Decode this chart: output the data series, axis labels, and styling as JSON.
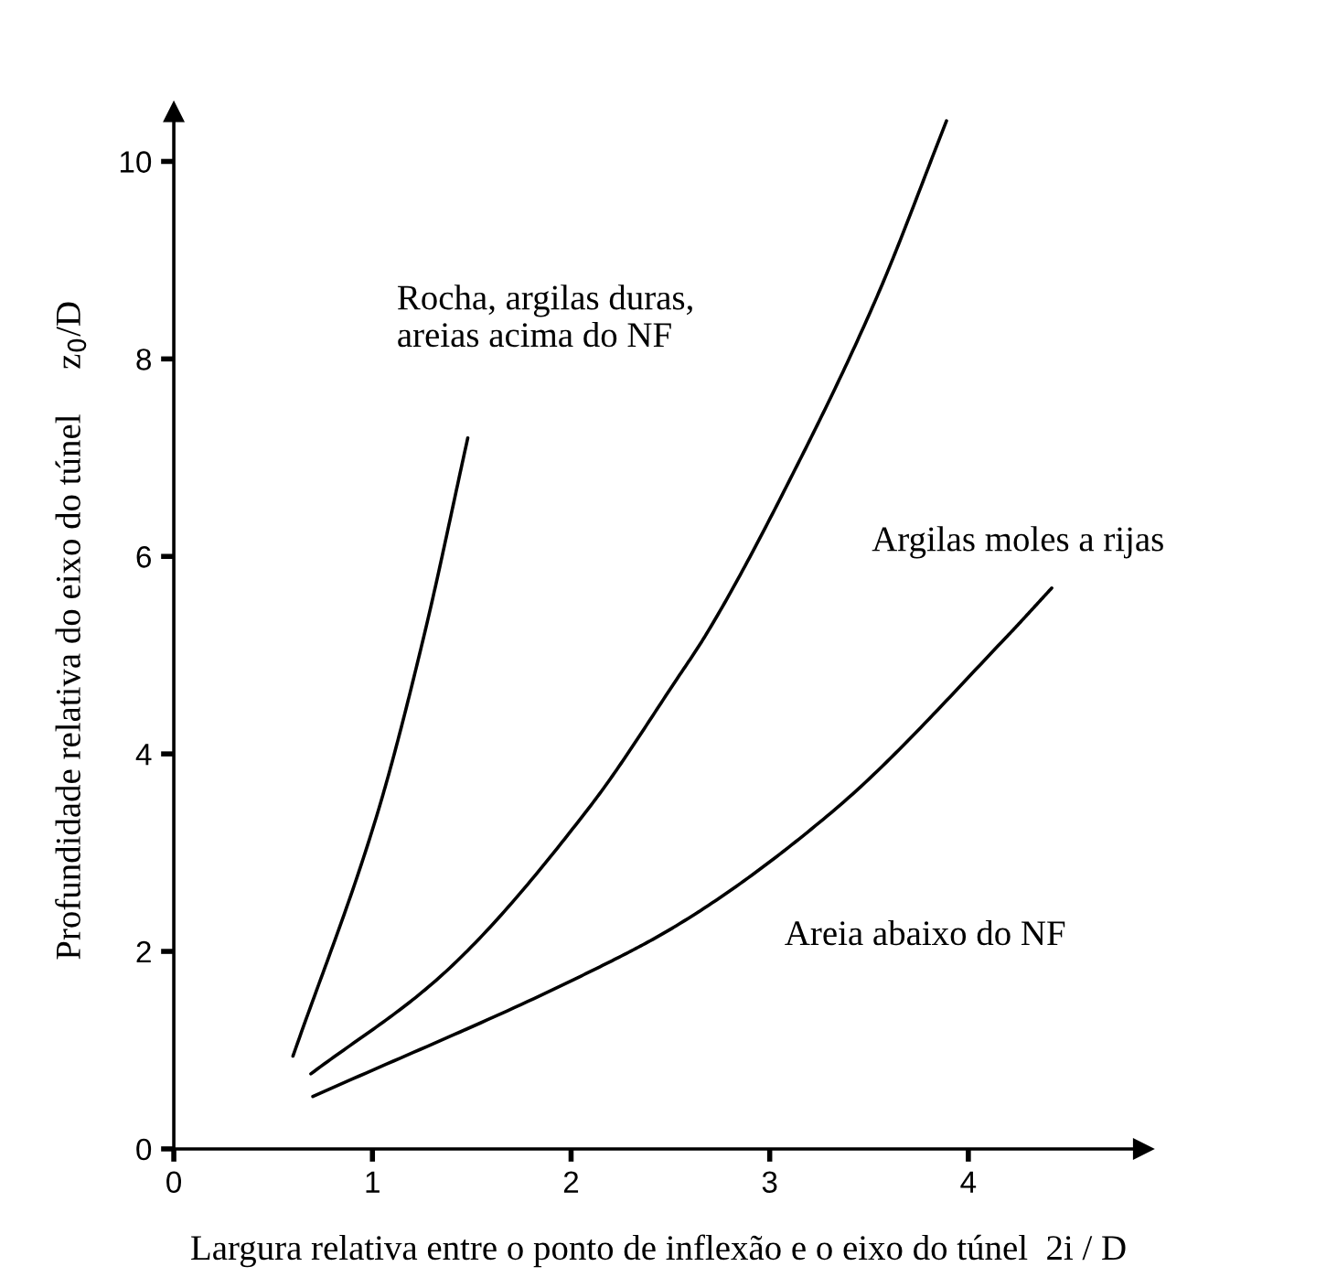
{
  "chart_data": {
    "type": "line",
    "xlabel": "Largura relativa entre o ponto de inflexão e o eixo do túnel  2i / D",
    "ylabel": "Profundidade relativa do eixo do túnel     z$_{0}$/D",
    "xlim": [
      0,
      4.88
    ],
    "ylim": [
      0,
      10.5
    ],
    "xticks": [
      0,
      1,
      2,
      3,
      4
    ],
    "yticks": [
      0,
      2,
      4,
      6,
      8,
      10
    ],
    "grid": false,
    "marker": "none",
    "line_style": "solid",
    "series": [
      {
        "color": "#000000",
        "x": [
          0.6,
          1.03,
          1.26,
          1.48
        ],
        "values": [
          0.94,
          3.43,
          5.2,
          7.2
        ]
      },
      {
        "color": "#000000",
        "x": [
          0.69,
          1.35,
          2.1,
          2.53,
          2.68,
          3.14,
          3.54,
          3.89
        ],
        "values": [
          0.76,
          1.76,
          3.48,
          4.75,
          5.21,
          6.93,
          8.63,
          10.41
        ]
      },
      {
        "color": "#000000",
        "x": [
          0.7,
          2.05,
          2.53,
          3.33,
          4.19,
          4.42
        ],
        "values": [
          0.53,
          1.75,
          2.26,
          3.44,
          5.18,
          5.68
        ]
      }
    ],
    "annotations": [
      "Rocha, argilas duras,\nareias acima do NF",
      "Argilas moles a rijas",
      "Areia abaixo do NF"
    ]
  }
}
